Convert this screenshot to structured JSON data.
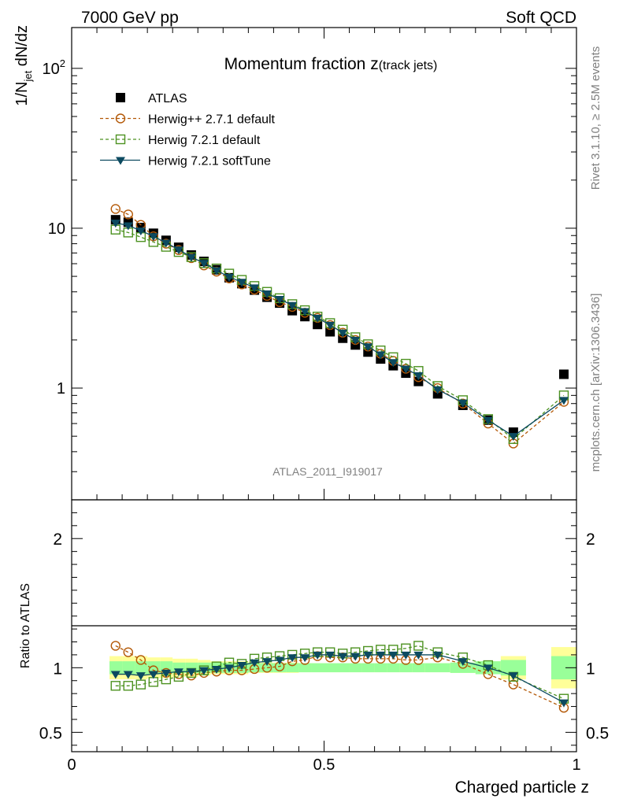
{
  "header": {
    "left": "7000 GeV pp",
    "right": "Soft QCD"
  },
  "side_labels": {
    "rivet": "Rivet 3.1.10, ≥ 2.5M events",
    "mcplots": "mcplots.cern.ch [arXiv:1306.3436]"
  },
  "colors": {
    "atlas": "#000000",
    "herwigpp": "#b35806",
    "herwig721": "#4d9221",
    "softtune": "#0c4a60",
    "band_inner": "#99ff99",
    "band_outer": "#ffff99"
  },
  "chart_data": [
    {
      "type": "scatter",
      "title_main": "Momentum fraction ",
      "title_var": "z",
      "title_sub": "(track jets)",
      "xlabel": "",
      "ylabel_parts": [
        "1/N",
        "jet",
        " dN/dz"
      ],
      "yscale": "log",
      "xlim": [
        0,
        1
      ],
      "ylim": [
        0.2,
        180
      ],
      "y_ticks": [
        {
          "value": 1,
          "label": "1"
        },
        {
          "value": 10,
          "label": "10"
        },
        {
          "value": 100,
          "label": "10",
          "sup": "2"
        }
      ],
      "watermark": "ATLAS_2011_I919017",
      "legend_position": "top-left",
      "x": [
        0.087,
        0.112,
        0.137,
        0.162,
        0.187,
        0.212,
        0.237,
        0.262,
        0.287,
        0.312,
        0.337,
        0.362,
        0.387,
        0.412,
        0.437,
        0.462,
        0.487,
        0.512,
        0.537,
        0.562,
        0.587,
        0.612,
        0.637,
        0.662,
        0.687,
        0.725,
        0.775,
        0.825,
        0.875,
        0.975
      ],
      "series": [
        {
          "name": "ATLAS",
          "marker": "square-filled",
          "line": "none",
          "values": [
            11.3,
            10.9,
            10.1,
            9.3,
            8.4,
            7.6,
            6.8,
            6.2,
            5.5,
            4.9,
            4.5,
            4.1,
            3.7,
            3.4,
            3.05,
            2.8,
            2.5,
            2.25,
            2.05,
            1.86,
            1.68,
            1.52,
            1.38,
            1.24,
            1.1,
            0.92,
            0.78,
            0.63,
            0.53,
            1.22
          ]
        },
        {
          "name": "Herwig++ 2.7.1 default",
          "marker": "circle-open",
          "line": "dashed",
          "values": [
            13.2,
            12.2,
            10.5,
            8.9,
            8.0,
            7.3,
            6.5,
            5.85,
            5.35,
            4.85,
            4.45,
            4.12,
            3.77,
            3.45,
            3.22,
            2.96,
            2.75,
            2.48,
            2.22,
            2.0,
            1.82,
            1.64,
            1.48,
            1.32,
            1.17,
            1.0,
            0.8,
            0.6,
            0.45,
            0.82
          ]
        },
        {
          "name": "Herwig 7.2.1 default",
          "marker": "square-open",
          "line": "dashed",
          "values": [
            9.8,
            9.4,
            8.8,
            8.2,
            7.65,
            7.1,
            6.6,
            6.05,
            5.6,
            5.2,
            4.75,
            4.35,
            4.0,
            3.65,
            3.35,
            3.07,
            2.8,
            2.55,
            2.32,
            2.08,
            1.88,
            1.72,
            1.56,
            1.42,
            1.28,
            1.03,
            0.84,
            0.64,
            0.48,
            0.9
          ]
        },
        {
          "name": "Herwig 7.2.1 softTune",
          "marker": "triangle-down-filled",
          "line": "solid",
          "values": [
            10.8,
            10.4,
            9.65,
            8.9,
            8.1,
            7.35,
            6.6,
            6.05,
            5.45,
            4.95,
            4.6,
            4.25,
            3.9,
            3.6,
            3.3,
            3.02,
            2.75,
            2.48,
            2.22,
            2.0,
            1.82,
            1.62,
            1.45,
            1.32,
            1.2,
            0.98,
            0.81,
            0.63,
            0.5,
            0.84
          ]
        }
      ]
    },
    {
      "type": "scatter",
      "xlabel": "Charged particle z",
      "ylabel": "Ratio to ATLAS",
      "xlim": [
        0,
        1
      ],
      "ylim": [
        0.35,
        2.3
      ],
      "x_ticks": [
        {
          "value": 0,
          "label": "0"
        },
        {
          "value": 0.5,
          "label": "0.5"
        },
        {
          "value": 1,
          "label": "1"
        }
      ],
      "y_ticks": [
        {
          "value": 0.5,
          "label": "0.5"
        },
        {
          "value": 1,
          "label": "1"
        },
        {
          "value": 2,
          "label": "2"
        }
      ],
      "x": [
        0.087,
        0.112,
        0.137,
        0.162,
        0.187,
        0.212,
        0.237,
        0.262,
        0.287,
        0.312,
        0.337,
        0.362,
        0.387,
        0.412,
        0.437,
        0.462,
        0.487,
        0.512,
        0.537,
        0.562,
        0.587,
        0.612,
        0.637,
        0.662,
        0.687,
        0.725,
        0.775,
        0.825,
        0.875,
        0.975
      ],
      "bins": [
        [
          0.075,
          0.1
        ],
        [
          0.1,
          0.125
        ],
        [
          0.125,
          0.15
        ],
        [
          0.15,
          0.175
        ],
        [
          0.175,
          0.2
        ],
        [
          0.2,
          0.225
        ],
        [
          0.225,
          0.25
        ],
        [
          0.25,
          0.275
        ],
        [
          0.275,
          0.3
        ],
        [
          0.3,
          0.325
        ],
        [
          0.325,
          0.35
        ],
        [
          0.35,
          0.375
        ],
        [
          0.375,
          0.4
        ],
        [
          0.4,
          0.425
        ],
        [
          0.425,
          0.45
        ],
        [
          0.45,
          0.475
        ],
        [
          0.475,
          0.5
        ],
        [
          0.5,
          0.525
        ],
        [
          0.525,
          0.55
        ],
        [
          0.55,
          0.575
        ],
        [
          0.575,
          0.6
        ],
        [
          0.6,
          0.625
        ],
        [
          0.625,
          0.65
        ],
        [
          0.65,
          0.675
        ],
        [
          0.675,
          0.7
        ],
        [
          0.7,
          0.75
        ],
        [
          0.75,
          0.8
        ],
        [
          0.8,
          0.85
        ],
        [
          0.85,
          0.9
        ],
        [
          0.95,
          1.0
        ]
      ],
      "band_stat": [
        0.05,
        0.05,
        0.05,
        0.05,
        0.05,
        0.04,
        0.04,
        0.04,
        0.04,
        0.04,
        0.04,
        0.035,
        0.035,
        0.035,
        0.035,
        0.035,
        0.035,
        0.035,
        0.035,
        0.035,
        0.035,
        0.035,
        0.035,
        0.035,
        0.035,
        0.035,
        0.04,
        0.05,
        0.06,
        0.09
      ],
      "band_total": [
        0.09,
        0.09,
        0.09,
        0.08,
        0.08,
        0.07,
        0.07,
        0.06,
        0.05,
        0.05,
        0.05,
        0.04,
        0.04,
        0.04,
        0.04,
        0.035,
        0.035,
        0.035,
        0.035,
        0.035,
        0.035,
        0.035,
        0.035,
        0.035,
        0.035,
        0.035,
        0.04,
        0.05,
        0.09,
        0.16
      ],
      "series": [
        {
          "name": "Herwig++ 2.7.1 default",
          "values": [
            1.17,
            1.12,
            1.06,
            0.98,
            0.96,
            0.95,
            0.94,
            0.96,
            0.97,
            0.98,
            0.98,
            0.99,
            1.0,
            1.01,
            1.05,
            1.06,
            1.09,
            1.08,
            1.08,
            1.07,
            1.07,
            1.07,
            1.07,
            1.06,
            1.06,
            1.08,
            1.03,
            0.95,
            0.87,
            0.69
          ]
        },
        {
          "name": "Herwig 7.2.1 default",
          "values": [
            0.86,
            0.86,
            0.87,
            0.89,
            0.91,
            0.93,
            0.96,
            0.98,
            1.01,
            1.04,
            1.03,
            1.07,
            1.08,
            1.09,
            1.1,
            1.11,
            1.12,
            1.12,
            1.11,
            1.12,
            1.13,
            1.14,
            1.14,
            1.15,
            1.17,
            1.12,
            1.08,
            1.02,
            0.93,
            0.76
          ]
        },
        {
          "name": "Herwig 7.2.1 softTune",
          "values": [
            0.95,
            0.95,
            0.94,
            0.95,
            0.96,
            0.97,
            0.97,
            0.98,
            0.99,
            1.0,
            1.02,
            1.04,
            1.05,
            1.06,
            1.08,
            1.08,
            1.1,
            1.1,
            1.09,
            1.09,
            1.1,
            1.1,
            1.1,
            1.1,
            1.1,
            1.1,
            1.05,
            1.0,
            0.94,
            0.73
          ]
        }
      ]
    }
  ]
}
